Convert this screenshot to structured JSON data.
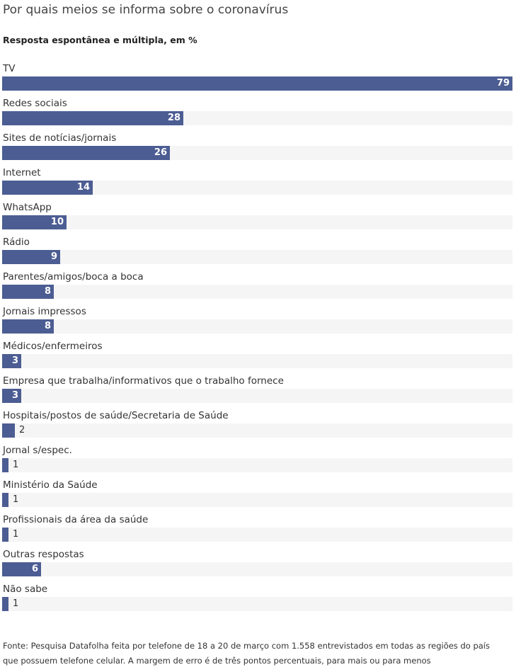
{
  "chart_data": {
    "type": "bar",
    "orientation": "horizontal",
    "title": "Por quais meios se informa sobre o coronavírus",
    "subtitle": "Resposta espontânea e múltipla, em %",
    "categories": [
      "TV",
      "Redes sociais",
      "Sites de notícias/jornais",
      "Internet",
      "WhatsApp",
      "Rádio",
      "Parentes/amigos/boca a boca",
      "Jornais impressos",
      "Médicos/enfermeiros",
      "Empresa que trabalha/informativos que o trabalho fornece",
      "Hospitais/postos de saúde/Secretaria de Saúde",
      "Jornal s/espec.",
      "Ministério da Saúde",
      "Profissionais da área da saúde",
      "Outras respostas",
      "Não sabe"
    ],
    "values": [
      79,
      28,
      26,
      14,
      10,
      9,
      8,
      8,
      3,
      3,
      2,
      1,
      1,
      1,
      6,
      1
    ],
    "xlim": [
      0,
      79
    ],
    "bar_color": "#4c5d93",
    "track_color": "#f5f5f5"
  },
  "source": "Fonte: Pesquisa Datafolha feita por telefone de 18 a 20 de março com 1.558 entrevistados em todas as regiões do país que possuem telefone celular. A margem de erro é de três pontos percentuais, para mais ou para menos"
}
